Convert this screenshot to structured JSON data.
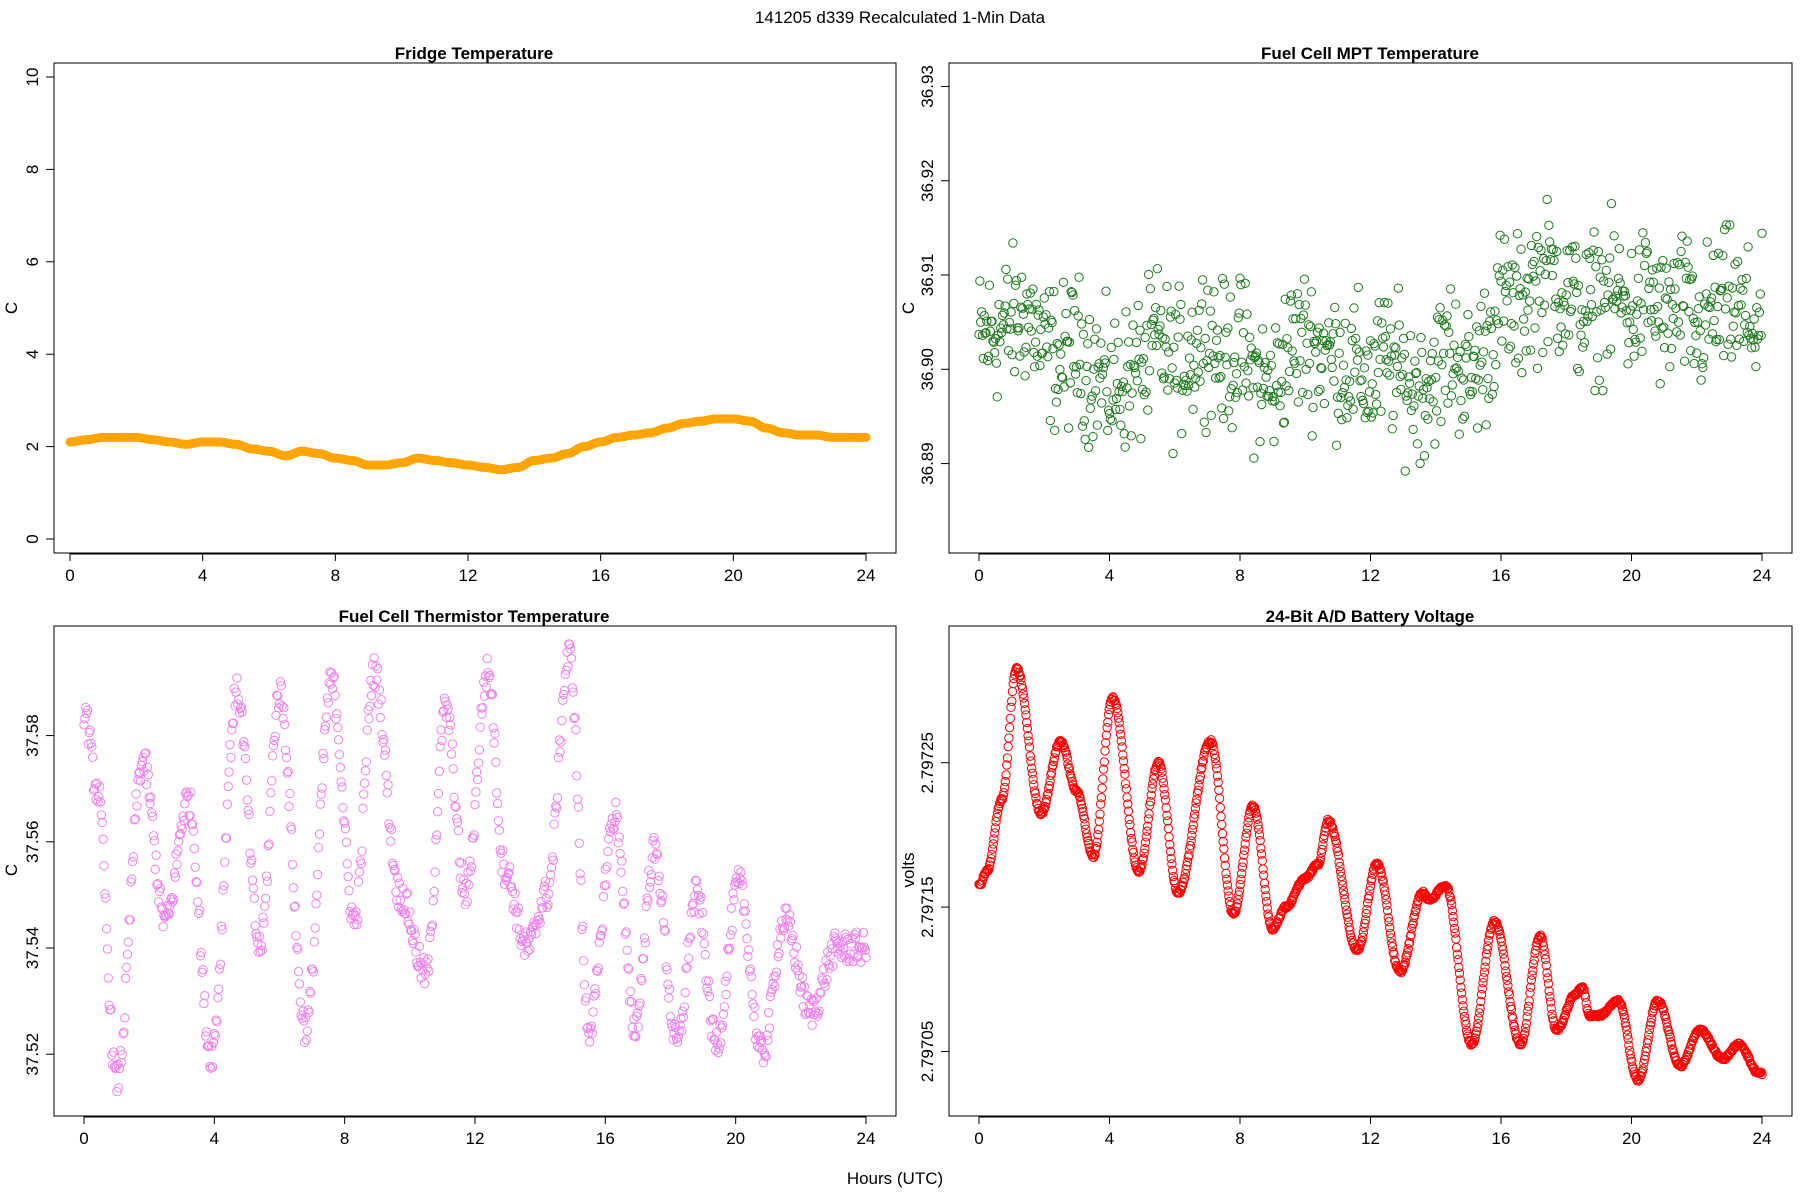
{
  "figure": {
    "suptitle": "141205   d339   Recalculated 1-Min Data",
    "xlabel": "Hours (UTC)"
  },
  "chart_data": [
    {
      "id": "fridge",
      "type": "scatter",
      "title": "Fridge Temperature",
      "xlabel": "",
      "ylabel": "C",
      "color": "#FFA500",
      "marker": "filled",
      "xlim": [
        0,
        24
      ],
      "ylim": [
        0,
        10
      ],
      "xticks": [
        0,
        4,
        8,
        12,
        16,
        20,
        24
      ],
      "yticks": [
        0,
        2,
        4,
        6,
        8,
        10
      ],
      "ytick_labels": [
        "0",
        "2",
        "4",
        "6",
        "8",
        "10"
      ],
      "x": [
        0,
        0.5,
        1,
        1.5,
        2,
        2.5,
        3,
        3.5,
        4,
        4.5,
        5,
        5.5,
        6,
        6.5,
        7,
        7.5,
        8,
        8.5,
        9,
        9.5,
        10,
        10.5,
        11,
        11.5,
        12,
        12.5,
        13,
        13.5,
        14,
        14.5,
        15,
        15.5,
        16,
        16.5,
        17,
        17.5,
        18,
        18.5,
        19,
        19.5,
        20,
        20.5,
        21,
        21.5,
        22,
        22.5,
        23,
        23.5,
        24
      ],
      "values": [
        2.1,
        2.15,
        2.2,
        2.2,
        2.2,
        2.15,
        2.1,
        2.05,
        2.1,
        2.1,
        2.05,
        1.95,
        1.9,
        1.8,
        1.9,
        1.85,
        1.75,
        1.7,
        1.6,
        1.6,
        1.65,
        1.75,
        1.7,
        1.65,
        1.6,
        1.55,
        1.5,
        1.55,
        1.7,
        1.75,
        1.85,
        2.0,
        2.1,
        2.2,
        2.25,
        2.3,
        2.4,
        2.5,
        2.55,
        2.6,
        2.6,
        2.55,
        2.4,
        2.3,
        2.25,
        2.25,
        2.2,
        2.2,
        2.2
      ]
    },
    {
      "id": "mpt",
      "type": "scatter",
      "title": "Fuel Cell MPT Temperature",
      "xlabel": "",
      "ylabel": "C",
      "color": "#1E7A1E",
      "marker": "open",
      "xlim": [
        0,
        24
      ],
      "ylim": [
        36.882,
        36.931
      ],
      "xticks": [
        0,
        4,
        8,
        12,
        16,
        20,
        24
      ],
      "yticks": [
        36.89,
        36.9,
        36.91,
        36.92,
        36.93
      ],
      "ytick_labels": [
        "36.89",
        "36.90",
        "36.91",
        "36.92",
        "36.93"
      ],
      "x": [
        0,
        0.5,
        1,
        1.5,
        2,
        2.5,
        3,
        3.5,
        4,
        4.5,
        5,
        5.5,
        6,
        6.5,
        7,
        7.5,
        8,
        8.5,
        9,
        9.5,
        10,
        10.5,
        11,
        11.5,
        12,
        12.5,
        13,
        13.5,
        14,
        14.5,
        15,
        15.5,
        16,
        16.5,
        17,
        17.5,
        18,
        18.5,
        19,
        19.5,
        20,
        20.5,
        21,
        21.5,
        22,
        22.5,
        23,
        23.5,
        24
      ],
      "values": [
        36.903,
        36.904,
        36.905,
        36.906,
        36.902,
        36.901,
        36.902,
        36.9,
        36.898,
        36.899,
        36.9,
        36.903,
        36.9,
        36.902,
        36.904,
        36.901,
        36.902,
        36.899,
        36.898,
        36.902,
        36.903,
        36.902,
        36.901,
        36.9,
        36.899,
        36.901,
        36.899,
        36.898,
        36.9,
        36.902,
        36.899,
        36.902,
        36.907,
        36.906,
        36.909,
        36.91,
        36.908,
        36.906,
        36.907,
        36.908,
        36.906,
        36.908,
        36.905,
        36.907,
        36.904,
        36.906,
        36.907,
        36.905,
        36.905
      ],
      "spread": 0.0075
    },
    {
      "id": "thermistor",
      "type": "scatter",
      "title": "Fuel Cell Thermistor Temperature",
      "xlabel": "",
      "ylabel": "C",
      "color": "#EE82EE",
      "marker": "open",
      "xlim": [
        0,
        24
      ],
      "ylim": [
        37.511,
        37.598
      ],
      "xticks": [
        0,
        4,
        8,
        12,
        16,
        20,
        24
      ],
      "yticks": [
        37.52,
        37.54,
        37.56,
        37.58
      ],
      "ytick_labels": [
        "37.52",
        "37.54",
        "37.56",
        "37.58"
      ],
      "x": [
        0,
        0.4,
        1.0,
        1.8,
        2.5,
        3.2,
        3.9,
        4.7,
        5.4,
        6.0,
        6.8,
        7.6,
        8.3,
        8.9,
        9.7,
        10.5,
        11.1,
        11.7,
        12.4,
        12.9,
        13.6,
        14.2,
        14.9,
        15.5,
        16.3,
        16.9,
        17.5,
        18.2,
        18.8,
        19.4,
        20.1,
        20.8,
        21.5,
        22.3,
        23.1,
        24.0
      ],
      "values": [
        37.585,
        37.57,
        37.515,
        37.575,
        37.545,
        37.568,
        37.52,
        37.588,
        37.54,
        37.588,
        37.525,
        37.59,
        37.545,
        37.592,
        37.55,
        37.535,
        37.585,
        37.55,
        37.592,
        37.555,
        37.54,
        37.55,
        37.595,
        37.525,
        37.565,
        37.525,
        37.558,
        37.522,
        37.55,
        37.522,
        37.552,
        37.52,
        37.545,
        37.528,
        37.54,
        37.54
      ]
    },
    {
      "id": "voltage",
      "type": "scatter",
      "title": "24-Bit A/D Battery Voltage",
      "xlabel": "",
      "ylabel": "volts",
      "color": "#FF0000",
      "marker": "open",
      "xlim": [
        0,
        24
      ],
      "ylim": [
        2.797015,
        2.797335
      ],
      "xticks": [
        0,
        4,
        8,
        12,
        16,
        20,
        24
      ],
      "yticks": [
        2.79705,
        2.79715,
        2.79725
      ],
      "ytick_labels": [
        "2.79705",
        "2.79715",
        "2.79725"
      ],
      "x": [
        0,
        0.25,
        0.7,
        1.15,
        1.9,
        2.5,
        3.0,
        3.5,
        4.1,
        4.9,
        5.5,
        6.1,
        7.1,
        7.8,
        8.4,
        9.0,
        9.4,
        10.0,
        10.4,
        10.7,
        11.6,
        12.2,
        12.9,
        13.6,
        13.8,
        14.3,
        15.1,
        15.8,
        16.6,
        17.2,
        17.7,
        18.3,
        18.5,
        18.7,
        19.0,
        19.6,
        20.2,
        20.8,
        21.5,
        22.1,
        22.8,
        23.3,
        23.9
      ],
      "values": [
        2.797165,
        2.797175,
        2.797225,
        2.797315,
        2.797215,
        2.797265,
        2.79723,
        2.797185,
        2.797295,
        2.797175,
        2.79725,
        2.79716,
        2.797265,
        2.797145,
        2.79722,
        2.797135,
        2.79715,
        2.79717,
        2.79718,
        2.79721,
        2.79712,
        2.79718,
        2.797105,
        2.79716,
        2.797155,
        2.797165,
        2.797055,
        2.79714,
        2.797055,
        2.79713,
        2.797065,
        2.79709,
        2.797095,
        2.797075,
        2.797075,
        2.797085,
        2.79703,
        2.797085,
        2.79704,
        2.797065,
        2.797045,
        2.797055,
        2.797035
      ]
    }
  ]
}
